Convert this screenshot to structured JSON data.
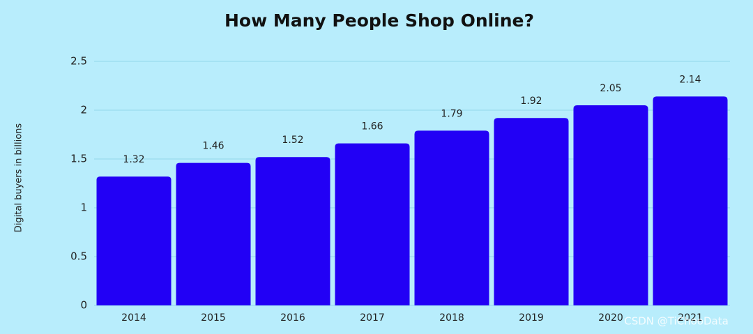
{
  "chart_data": {
    "type": "bar",
    "title": "How Many People Shop Online?",
    "y_label": "Digital buyers in billions",
    "categories": [
      "2014",
      "2015",
      "2016",
      "2017",
      "2018",
      "2019",
      "2020",
      "2021"
    ],
    "values": [
      1.32,
      1.46,
      1.52,
      1.66,
      1.79,
      1.92,
      2.05,
      2.14
    ],
    "color": "#2200f5",
    "ylim": [
      0,
      2.5
    ],
    "yticks": [
      0,
      0.5,
      1,
      1.5,
      2,
      2.5
    ],
    "grid": true,
    "watermark": "CSDN @TiChooData"
  }
}
